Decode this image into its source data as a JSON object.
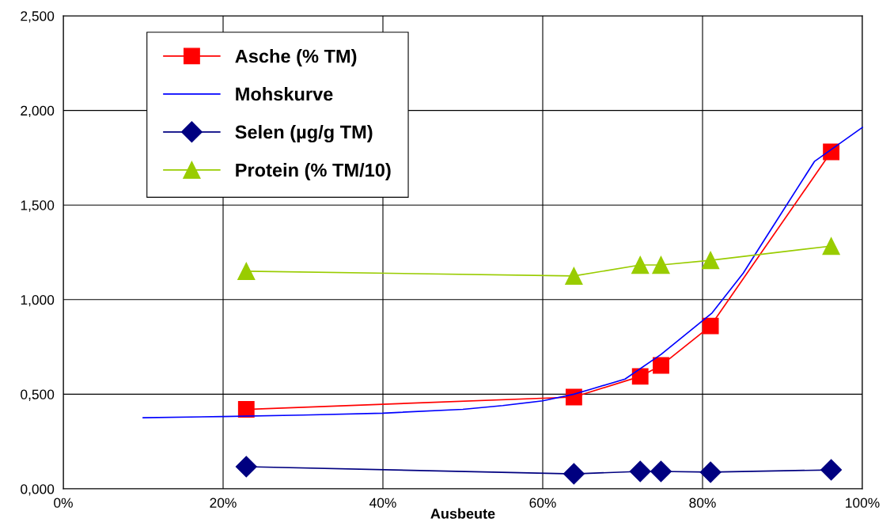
{
  "chart_data": {
    "type": "line",
    "xlabel": "Ausbeute",
    "xlim": [
      0,
      100
    ],
    "xticks": [
      {
        "value": 0,
        "label": "0%"
      },
      {
        "value": 20,
        "label": "20%"
      },
      {
        "value": 40,
        "label": "40%"
      },
      {
        "value": 60,
        "label": "60%"
      },
      {
        "value": 80,
        "label": "80%"
      },
      {
        "value": 100,
        "label": "100%"
      }
    ],
    "ylim": [
      0,
      2.5
    ],
    "yticks": [
      {
        "value": 0,
        "label": "0,000"
      },
      {
        "value": 0.5,
        "label": "0,500"
      },
      {
        "value": 1.0,
        "label": "1,000"
      },
      {
        "value": 1.5,
        "label": "1,500"
      },
      {
        "value": 2.0,
        "label": "2,000"
      },
      {
        "value": 2.5,
        "label": "2,500"
      }
    ],
    "grid": true,
    "legend": "top left",
    "series": [
      {
        "name": "Asche (% TM)",
        "color": "#ff0000",
        "marker": "square",
        "x": [
          22.9,
          63.9,
          72.2,
          74.8,
          81.0,
          96.1
        ],
        "values": [
          0.42,
          0.485,
          0.594,
          0.652,
          0.861,
          1.781
        ]
      },
      {
        "name": "Mohskurve",
        "color": "#0000ff",
        "marker": "none",
        "x": [
          10,
          20,
          30,
          40,
          50,
          55,
          60,
          63.9,
          66.3,
          70.3,
          74.8,
          81.2,
          85.1,
          88.1,
          94,
          100
        ],
        "values": [
          0.376,
          0.382,
          0.39,
          0.4,
          0.42,
          0.44,
          0.465,
          0.5,
          0.53,
          0.58,
          0.71,
          0.93,
          1.14,
          1.34,
          1.73,
          1.91
        ]
      },
      {
        "name": "Selen (µg/g TM)",
        "color": "#000080",
        "marker": "diamond",
        "x": [
          22.9,
          63.9,
          72.2,
          74.8,
          81.0,
          96.1
        ],
        "values": [
          0.117,
          0.079,
          0.092,
          0.092,
          0.088,
          0.1
        ]
      },
      {
        "name": "Protein (% TM/10)",
        "color": "#99cc00",
        "marker": "triangle",
        "x": [
          22.9,
          63.9,
          72.2,
          74.8,
          81.0,
          96.1
        ],
        "values": [
          1.15,
          1.125,
          1.183,
          1.183,
          1.208,
          1.283
        ]
      }
    ]
  }
}
